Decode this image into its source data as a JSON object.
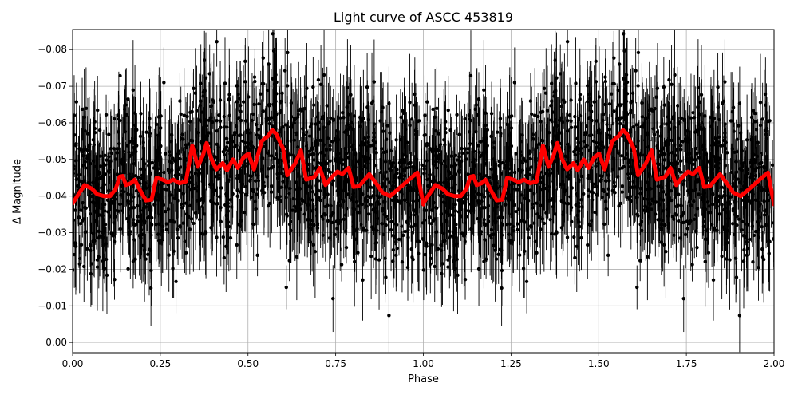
{
  "chart_data": {
    "type": "line",
    "title": "Light curve of ASCC 453819",
    "xlabel": "Phase",
    "ylabel": "Δ Magnitude",
    "xlim": [
      0.0,
      2.0
    ],
    "ylim": [
      0.0028,
      -0.0855
    ],
    "y_inverted": true,
    "grid": true,
    "legend": null,
    "x_ticks": [
      "0.00",
      "0.25",
      "0.50",
      "0.75",
      "1.00",
      "1.25",
      "1.50",
      "1.75",
      "2.00"
    ],
    "y_ticks": [
      "−0.08",
      "−0.07",
      "−0.06",
      "−0.05",
      "−0.04",
      "−0.03",
      "−0.02",
      "−0.01",
      "0.00"
    ],
    "series": [
      {
        "name": "observations",
        "style": "black points with vertical error bars",
        "color": "#000000",
        "description": "Dense phase-folded photometry, values scattered roughly between 0.00 and -0.085 with large error bars",
        "approx_range": [
          0.0,
          -0.085
        ]
      },
      {
        "name": "binned/smoothed model",
        "style": "thick red line",
        "color": "#ff0000",
        "x": [
          0.0,
          0.02,
          0.034,
          0.055,
          0.07,
          0.089,
          0.107,
          0.123,
          0.134,
          0.143,
          0.152,
          0.166,
          0.177,
          0.193,
          0.209,
          0.225,
          0.239,
          0.257,
          0.271,
          0.287,
          0.305,
          0.323,
          0.334,
          0.341,
          0.357,
          0.371,
          0.382,
          0.396,
          0.41,
          0.428,
          0.44,
          0.457,
          0.471,
          0.487,
          0.501,
          0.517,
          0.539,
          0.557,
          0.569,
          0.58,
          0.6,
          0.612,
          0.634,
          0.651,
          0.666,
          0.69,
          0.705,
          0.721,
          0.737,
          0.755,
          0.769,
          0.787,
          0.801,
          0.817,
          0.846,
          0.869,
          0.883,
          0.905,
          0.926,
          0.965,
          0.983,
          1.0
        ],
        "values": [
          -0.038,
          -0.041,
          -0.043,
          -0.042,
          -0.0405,
          -0.04,
          -0.04,
          -0.042,
          -0.0453,
          -0.0455,
          -0.043,
          -0.0435,
          -0.0445,
          -0.0415,
          -0.0388,
          -0.039,
          -0.045,
          -0.0445,
          -0.0438,
          -0.0445,
          -0.0435,
          -0.044,
          -0.05,
          -0.0538,
          -0.048,
          -0.051,
          -0.0545,
          -0.05,
          -0.0473,
          -0.049,
          -0.047,
          -0.05,
          -0.0477,
          -0.0505,
          -0.0516,
          -0.0473,
          -0.055,
          -0.0564,
          -0.058,
          -0.057,
          -0.053,
          -0.0457,
          -0.0488,
          -0.0525,
          -0.0445,
          -0.0453,
          -0.0477,
          -0.043,
          -0.045,
          -0.0467,
          -0.046,
          -0.0477,
          -0.0425,
          -0.0427,
          -0.046,
          -0.043,
          -0.041,
          -0.04,
          -0.0417,
          -0.045,
          -0.0464,
          -0.0377
        ],
        "periodic_repeat": "curve repeats identically for phase 1.0–2.0"
      }
    ]
  }
}
